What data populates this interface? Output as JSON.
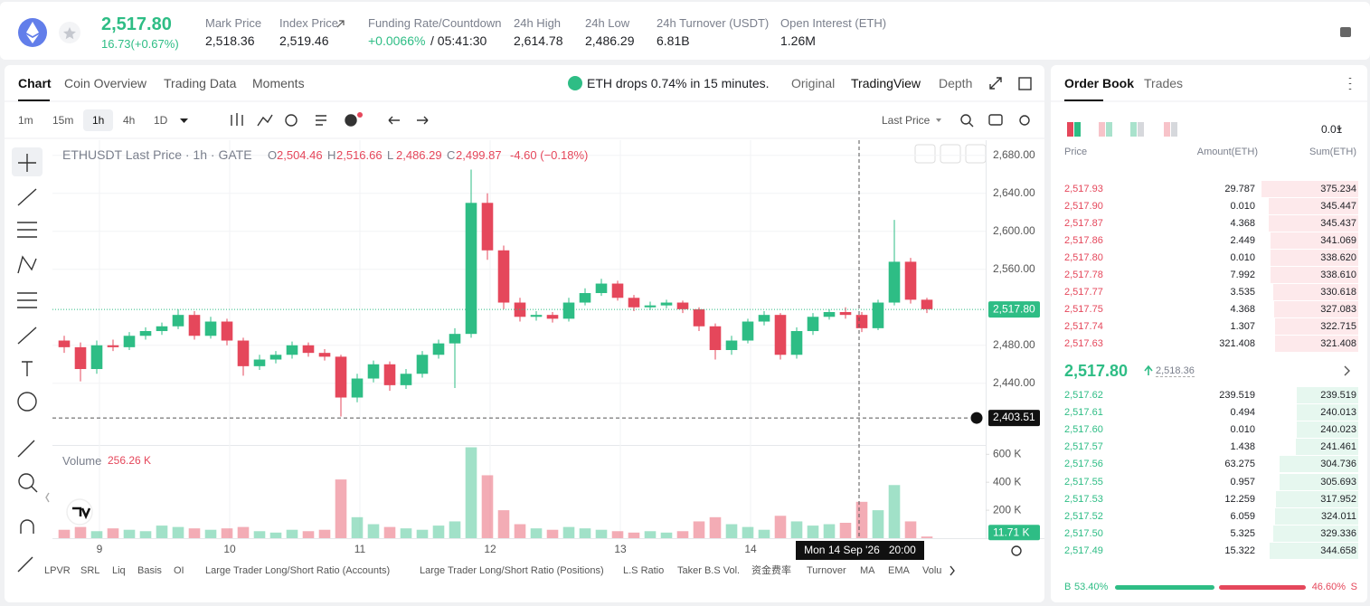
{
  "header": {
    "price": "2,517.80",
    "change": "16.73(+0.67%)",
    "stats": [
      {
        "label": "Mark Price",
        "value": "2,518.36"
      },
      {
        "label": "Index Price",
        "value": "2,519.46"
      },
      {
        "label": "Funding Rate/Countdown",
        "value": "+0.0066%",
        "value2": "/ 05:41:30"
      },
      {
        "label": "24h High",
        "value": "2,614.78"
      },
      {
        "label": "24h Low",
        "value": "2,486.29"
      },
      {
        "label": "24h Turnover (USDT)",
        "value": "6.81B"
      },
      {
        "label": "Open Interest (ETH)",
        "value": "1.26M"
      }
    ]
  },
  "chart_tabs": [
    "Chart",
    "Coin Overview",
    "Trading Data",
    "Moments"
  ],
  "news": "ETH drops 0.74% in 15 minutes.",
  "view_tabs": [
    "Original",
    "TradingView",
    "Depth"
  ],
  "intervals": [
    "1m",
    "15m",
    "1h",
    "4h",
    "1D"
  ],
  "active_interval": 2,
  "price_type": "Last Price",
  "legend": {
    "symbol": "ETHUSDT Last Price · 1h · GATE",
    "items": [
      {
        "label": "O",
        "value": "2,504.46"
      },
      {
        "label": "H",
        "value": "2,516.66"
      },
      {
        "label": "L",
        "value": "2,486.29"
      },
      {
        "label": "C",
        "value": "2,499.87"
      }
    ],
    "change": "-4.60 (−0.18%)"
  },
  "volume_legend": {
    "label": "Volume",
    "value": "256.26 K"
  },
  "indicators": [
    "LPVR",
    "SRL",
    "Liq",
    "Basis",
    "OI",
    "Large Trader Long/Short Ratio (Accounts)",
    "Large Trader Long/Short Ratio (Positions)",
    "L.S Ratio",
    "Taker B.S Vol.",
    "资金费率",
    "Turnover",
    "MA",
    "EMA",
    "Volu"
  ],
  "chart_data": {
    "type": "candlestick",
    "up_color": "#2ebd85",
    "down_color": "#e5475b",
    "grid": true,
    "x": [
      1.5,
      4.5,
      7.5,
      10.5,
      13.5,
      16.5,
      19.5,
      22.5,
      25.5,
      28.5,
      31.5,
      34.5,
      37.5,
      40.5,
      43.5,
      46.5,
      49.5,
      52.5,
      55.5,
      58.5,
      61.5,
      64.5,
      67.5,
      70.5,
      73.5,
      76.5,
      79.5,
      82.5,
      85.5,
      88.5,
      91.5,
      94.5,
      97.5,
      100.5,
      103.5,
      106.5,
      109.5,
      112.5,
      115.5,
      118.5,
      121.5,
      124.5,
      127.5,
      130.5,
      133.5,
      136.5,
      139.5,
      142.5,
      145.5,
      148.5,
      151.5,
      154.5,
      157.5,
      160.5
    ],
    "open": [
      2485,
      2478,
      2455,
      2480,
      2478,
      2490,
      2495,
      2500,
      2512,
      2490,
      2505,
      2485,
      2458,
      2465,
      2470,
      2480,
      2472,
      2468,
      2425,
      2445,
      2460,
      2438,
      2450,
      2470,
      2482,
      2492,
      2630,
      2580,
      2525,
      2510,
      2512,
      2508,
      2525,
      2535,
      2545,
      2530,
      2520,
      2522,
      2525,
      2518,
      2500,
      2475,
      2485,
      2505,
      2512,
      2470,
      2495,
      2510,
      2515,
      2512,
      2498,
      2525,
      2568,
      2528
    ],
    "high": [
      2490,
      2483,
      2485,
      2486,
      2494,
      2499,
      2504,
      2518,
      2516,
      2510,
      2508,
      2488,
      2470,
      2474,
      2484,
      2483,
      2476,
      2470,
      2450,
      2464,
      2463,
      2455,
      2474,
      2486,
      2498,
      2665,
      2640,
      2585,
      2530,
      2516,
      2515,
      2530,
      2540,
      2550,
      2548,
      2533,
      2526,
      2528,
      2527,
      2520,
      2503,
      2490,
      2508,
      2516,
      2514,
      2499,
      2514,
      2518,
      2520,
      2515,
      2528,
      2612,
      2572,
      2530
    ],
    "low": [
      2472,
      2442,
      2450,
      2474,
      2475,
      2486,
      2491,
      2497,
      2486,
      2487,
      2480,
      2448,
      2454,
      2461,
      2466,
      2468,
      2464,
      2405,
      2420,
      2441,
      2432,
      2434,
      2446,
      2466,
      2435,
      2488,
      2570,
      2518,
      2505,
      2506,
      2504,
      2505,
      2522,
      2532,
      2527,
      2516,
      2517,
      2519,
      2514,
      2495,
      2465,
      2470,
      2482,
      2501,
      2465,
      2466,
      2491,
      2507,
      2508,
      2494,
      2496,
      2522,
      2524,
      2514
    ],
    "close": [
      2478,
      2455,
      2480,
      2478,
      2490,
      2495,
      2500,
      2512,
      2490,
      2505,
      2485,
      2458,
      2465,
      2470,
      2480,
      2472,
      2468,
      2425,
      2445,
      2460,
      2438,
      2450,
      2470,
      2482,
      2492,
      2630,
      2580,
      2525,
      2510,
      2512,
      2508,
      2525,
      2535,
      2545,
      2530,
      2520,
      2522,
      2525,
      2518,
      2500,
      2475,
      2485,
      2505,
      2512,
      2470,
      2495,
      2510,
      2515,
      2512,
      2498,
      2525,
      2568,
      2528,
      2518
    ],
    "volume": [
      60000,
      80000,
      50000,
      70000,
      60000,
      50000,
      90000,
      80000,
      70000,
      60000,
      70000,
      80000,
      50000,
      40000,
      60000,
      50000,
      60000,
      420000,
      150000,
      100000,
      80000,
      70000,
      60000,
      90000,
      120000,
      650000,
      450000,
      200000,
      100000,
      70000,
      60000,
      80000,
      70000,
      60000,
      50000,
      40000,
      50000,
      40000,
      50000,
      120000,
      150000,
      100000,
      80000,
      60000,
      160000,
      120000,
      90000,
      100000,
      110000,
      260000,
      200000,
      380000,
      120000,
      11710
    ],
    "last_volume_label": "11.71 K",
    "xlim": [
      0,
      171
    ],
    "xticks": [
      {
        "value": 8,
        "label": "9"
      },
      {
        "value": 32,
        "label": "10"
      },
      {
        "value": 56,
        "label": "11"
      },
      {
        "value": 80,
        "label": "12"
      },
      {
        "value": 104,
        "label": "13"
      },
      {
        "value": 128,
        "label": "14"
      }
    ],
    "ylim": [
      2375,
      2696
    ],
    "yticks": [
      {
        "value": 2440,
        "label": "2,440.00"
      },
      {
        "value": 2480,
        "label": "2,480.00"
      },
      {
        "value": 2560,
        "label": "2,560.00"
      },
      {
        "value": 2600,
        "label": "2,600.00"
      },
      {
        "value": 2640,
        "label": "2,640.00"
      },
      {
        "value": 2680,
        "label": "2,680.00"
      }
    ],
    "volume_lim": [
      0,
      660000
    ],
    "volume_ticks": [
      {
        "value": 200000,
        "label": "200 K"
      },
      {
        "value": 400000,
        "label": "400 K"
      },
      {
        "value": 600000,
        "label": "600 K"
      }
    ],
    "last_price": {
      "value": 2517.8,
      "label": "2,517.80"
    },
    "crosshair": {
      "x": 148,
      "x_label": "Mon 14 Sep '26   20:00",
      "y": 2403.51,
      "y_label": "2,403.51"
    }
  },
  "order_book": {
    "tabs": [
      "Order Book",
      "Trades"
    ],
    "precision": "0.01",
    "headers": [
      "Price",
      "Amount(ETH)",
      "Sum(ETH)"
    ],
    "asks": [
      [
        "2,517.93",
        "29.787",
        "375.234"
      ],
      [
        "2,517.90",
        "0.010",
        "345.447"
      ],
      [
        "2,517.87",
        "4.368",
        "345.437"
      ],
      [
        "2,517.86",
        "2.449",
        "341.069"
      ],
      [
        "2,517.80",
        "0.010",
        "338.620"
      ],
      [
        "2,517.78",
        "7.992",
        "338.610"
      ],
      [
        "2,517.77",
        "3.535",
        "330.618"
      ],
      [
        "2,517.75",
        "4.368",
        "327.083"
      ],
      [
        "2,517.74",
        "1.307",
        "322.715"
      ],
      [
        "2,517.63",
        "321.408",
        "321.408"
      ]
    ],
    "mid_price": "2,517.80",
    "mark_price": "2,518.36",
    "bids": [
      [
        "2,517.62",
        "239.519",
        "239.519"
      ],
      [
        "2,517.61",
        "0.494",
        "240.013"
      ],
      [
        "2,517.60",
        "0.010",
        "240.023"
      ],
      [
        "2,517.57",
        "1.438",
        "241.461"
      ],
      [
        "2,517.56",
        "63.275",
        "304.736"
      ],
      [
        "2,517.55",
        "0.957",
        "305.693"
      ],
      [
        "2,517.53",
        "12.259",
        "317.952"
      ],
      [
        "2,517.52",
        "6.059",
        "324.011"
      ],
      [
        "2,517.50",
        "5.325",
        "329.336"
      ],
      [
        "2,517.49",
        "15.322",
        "344.658"
      ]
    ],
    "buy": {
      "label": "B",
      "value": 53.4,
      "value_label": "53.40%"
    },
    "sell": {
      "label": "S",
      "value": 46.6,
      "value_label": "46.60%"
    }
  }
}
